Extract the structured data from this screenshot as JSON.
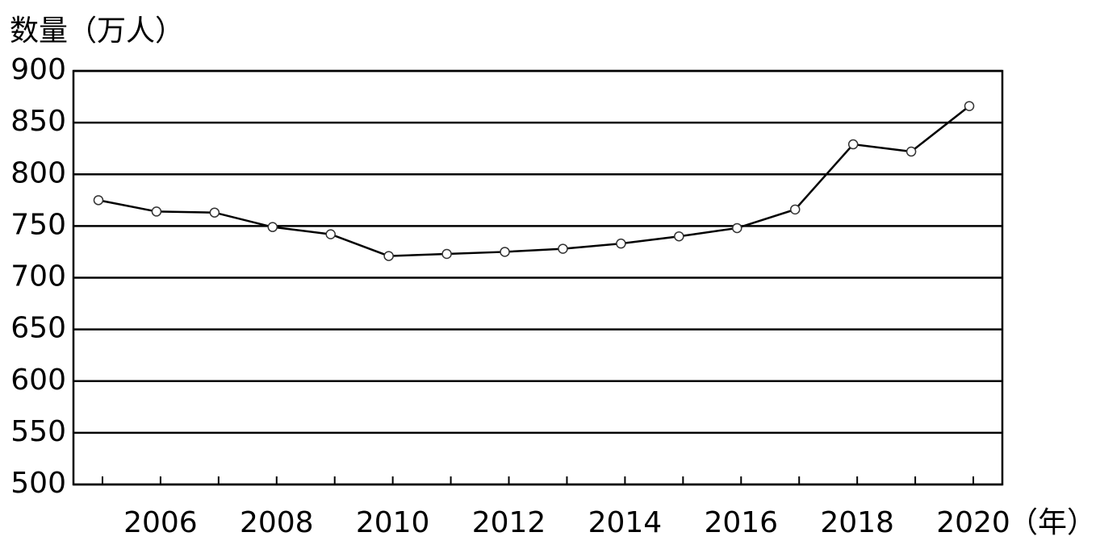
{
  "chart_data": {
    "type": "line",
    "y_label": "数量（万人）",
    "x_label": "（年）",
    "categories": [
      null,
      "2006",
      null,
      "2008",
      null,
      "2010",
      null,
      "2012",
      null,
      "2014",
      null,
      "2016",
      null,
      "2018",
      null,
      "2020"
    ],
    "series": [
      {
        "name": "数量",
        "color": "#000000",
        "values": [
          775,
          764,
          763,
          749,
          742,
          721,
          723,
          725,
          728,
          733,
          740,
          748,
          766,
          829,
          822,
          866
        ]
      }
    ],
    "ylim": [
      500,
      900
    ],
    "yticks": [
      500,
      550,
      600,
      650,
      700,
      750,
      800,
      850,
      900
    ],
    "grid": true
  }
}
